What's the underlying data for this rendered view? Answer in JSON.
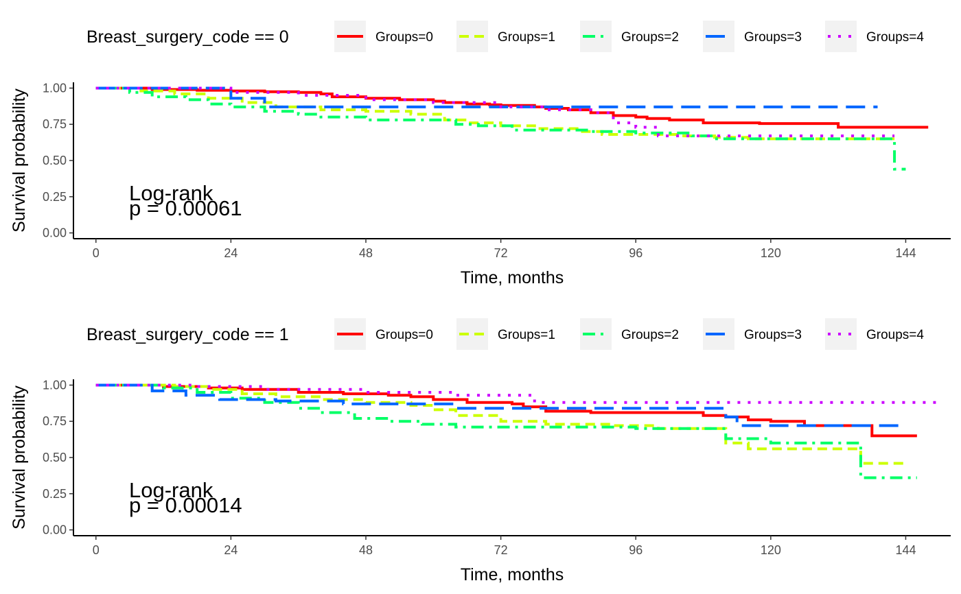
{
  "chart_data": [
    {
      "type": "line",
      "subtype": "kaplan-meier step",
      "title": "",
      "xlabel": "Time, months",
      "ylabel": "Survival probability",
      "xlim": [
        -4,
        152
      ],
      "ylim": [
        -0.04,
        1.04
      ],
      "xticks": [
        0,
        24,
        48,
        72,
        96,
        120,
        144
      ],
      "yticks": [
        0.0,
        0.25,
        0.5,
        0.75,
        1.0
      ],
      "ytick_labels": [
        "0.00",
        "0.25",
        "0.50",
        "0.75",
        "1.00"
      ],
      "grid": false,
      "legend_position": "top",
      "legend_title": "Breast_surgery_code == 0",
      "annotation": [
        "Log-rank",
        "p = 0.00061"
      ],
      "series": [
        {
          "name": "Groups=0",
          "color": "#ff0000",
          "dash": "solid",
          "x": [
            0,
            10,
            18,
            24,
            30,
            36,
            40,
            42,
            48,
            54,
            60,
            62,
            66,
            70,
            72,
            78,
            80,
            84,
            88,
            92,
            96,
            98,
            102,
            108,
            112,
            118,
            132,
            148
          ],
          "y": [
            1.0,
            0.99,
            0.985,
            0.98,
            0.975,
            0.97,
            0.96,
            0.94,
            0.93,
            0.92,
            0.91,
            0.9,
            0.89,
            0.885,
            0.88,
            0.87,
            0.86,
            0.85,
            0.83,
            0.81,
            0.8,
            0.79,
            0.78,
            0.76,
            0.76,
            0.755,
            0.73,
            0.73
          ]
        },
        {
          "name": "Groups=1",
          "color": "#ccff00",
          "dash": "dashed",
          "x": [
            0,
            8,
            14,
            20,
            26,
            32,
            40,
            48,
            56,
            62,
            66,
            72,
            78,
            86,
            90,
            96,
            104,
            110,
            116,
            124,
            130,
            142
          ],
          "y": [
            1.0,
            0.98,
            0.96,
            0.93,
            0.9,
            0.87,
            0.85,
            0.84,
            0.82,
            0.78,
            0.76,
            0.74,
            0.72,
            0.7,
            0.68,
            0.68,
            0.67,
            0.66,
            0.65,
            0.65,
            0.65,
            0.65
          ]
        },
        {
          "name": "Groups=2",
          "color": "#00ff66",
          "dash": "dash-dot",
          "x": [
            0,
            6,
            10,
            16,
            20,
            24,
            30,
            36,
            40,
            48,
            56,
            64,
            68,
            74,
            80,
            88,
            96,
            106,
            110,
            120,
            130,
            140,
            142,
            144
          ],
          "y": [
            1.0,
            0.97,
            0.94,
            0.92,
            0.89,
            0.87,
            0.84,
            0.82,
            0.8,
            0.78,
            0.78,
            0.75,
            0.74,
            0.71,
            0.71,
            0.7,
            0.69,
            0.67,
            0.65,
            0.65,
            0.65,
            0.65,
            0.44,
            0.44
          ]
        },
        {
          "name": "Groups=3",
          "color": "#0066ff",
          "dash": "longdash",
          "x": [
            0,
            18,
            24,
            30,
            60,
            96,
            139
          ],
          "y": [
            1.0,
            1.0,
            0.93,
            0.87,
            0.87,
            0.87,
            0.87
          ]
        },
        {
          "name": "Groups=4",
          "color": "#cc00ff",
          "dash": "dotted",
          "x": [
            0,
            12,
            24,
            36,
            48,
            60,
            72,
            80,
            88,
            92,
            96,
            100,
            110,
            130,
            142
          ],
          "y": [
            1.0,
            1.0,
            0.97,
            0.95,
            0.92,
            0.9,
            0.87,
            0.85,
            0.83,
            0.76,
            0.73,
            0.67,
            0.67,
            0.67,
            0.67
          ]
        }
      ]
    },
    {
      "type": "line",
      "subtype": "kaplan-meier step",
      "title": "",
      "xlabel": "Time, months",
      "ylabel": "Survival probability",
      "xlim": [
        -4,
        152
      ],
      "ylim": [
        -0.04,
        1.04
      ],
      "xticks": [
        0,
        24,
        48,
        72,
        96,
        120,
        144
      ],
      "yticks": [
        0.0,
        0.25,
        0.5,
        0.75,
        1.0
      ],
      "ytick_labels": [
        "0.00",
        "0.25",
        "0.50",
        "0.75",
        "1.00"
      ],
      "grid": false,
      "legend_position": "top",
      "legend_title": "Breast_surgery_code == 1",
      "annotation": [
        "Log-rank",
        "p = 0.00014"
      ],
      "series": [
        {
          "name": "Groups=0",
          "color": "#ff0000",
          "dash": "solid",
          "x": [
            0,
            12,
            20,
            26,
            36,
            44,
            52,
            56,
            60,
            66,
            74,
            76,
            80,
            88,
            96,
            104,
            108,
            112,
            116,
            120,
            126,
            134,
            138,
            146
          ],
          "y": [
            1.0,
            0.99,
            0.98,
            0.97,
            0.95,
            0.94,
            0.93,
            0.92,
            0.9,
            0.88,
            0.87,
            0.85,
            0.82,
            0.81,
            0.81,
            0.81,
            0.79,
            0.78,
            0.76,
            0.75,
            0.72,
            0.72,
            0.65,
            0.65
          ]
        },
        {
          "name": "Groups=1",
          "color": "#ccff00",
          "dash": "dashed",
          "x": [
            0,
            14,
            20,
            26,
            32,
            40,
            48,
            56,
            60,
            64,
            72,
            80,
            92,
            100,
            110,
            112,
            116,
            124,
            136,
            144
          ],
          "y": [
            1.0,
            0.99,
            0.97,
            0.94,
            0.92,
            0.9,
            0.88,
            0.86,
            0.83,
            0.79,
            0.75,
            0.73,
            0.72,
            0.7,
            0.7,
            0.6,
            0.56,
            0.56,
            0.46,
            0.46
          ]
        },
        {
          "name": "Groups=2",
          "color": "#00ff66",
          "dash": "dash-dot",
          "x": [
            0,
            12,
            18,
            24,
            30,
            36,
            40,
            46,
            52,
            58,
            64,
            70,
            80,
            96,
            110,
            112,
            120,
            130,
            136,
            146
          ],
          "y": [
            1.0,
            0.98,
            0.95,
            0.91,
            0.88,
            0.84,
            0.81,
            0.77,
            0.75,
            0.73,
            0.71,
            0.71,
            0.71,
            0.7,
            0.7,
            0.63,
            0.6,
            0.6,
            0.36,
            0.36
          ]
        },
        {
          "name": "Groups=3",
          "color": "#0066ff",
          "dash": "longdash",
          "x": [
            0,
            10,
            16,
            22,
            32,
            44,
            60,
            64,
            80,
            112,
            114,
            144
          ],
          "y": [
            1.0,
            0.96,
            0.93,
            0.9,
            0.89,
            0.87,
            0.87,
            0.84,
            0.84,
            0.78,
            0.72,
            0.72
          ]
        },
        {
          "name": "Groups=4",
          "color": "#cc00ff",
          "dash": "dotted",
          "x": [
            0,
            18,
            30,
            48,
            64,
            78,
            96,
            150
          ],
          "y": [
            1.0,
            0.99,
            0.97,
            0.95,
            0.93,
            0.88,
            0.88,
            0.88
          ]
        }
      ]
    }
  ]
}
